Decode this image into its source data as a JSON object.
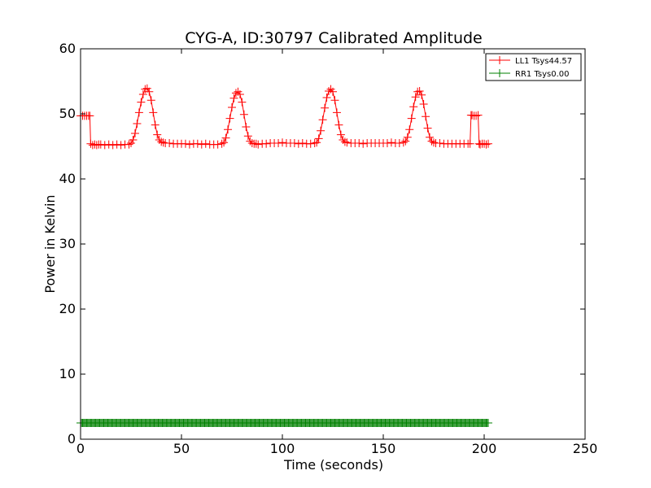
{
  "chart_data": {
    "type": "line",
    "title": "CYG-A, ID:30797 Calibrated Amplitude",
    "xlabel": "Time (seconds)",
    "ylabel": "Power in Kelvin",
    "xlim": [
      0,
      250
    ],
    "ylim": [
      0,
      60
    ],
    "xticks": [
      0,
      50,
      100,
      150,
      200,
      250
    ],
    "yticks": [
      0,
      10,
      20,
      30,
      40,
      50,
      60
    ],
    "xtick_labels": [
      "0",
      "50",
      "100",
      "150",
      "200",
      "250"
    ],
    "ytick_labels": [
      "0",
      "10",
      "20",
      "30",
      "40",
      "50",
      "60"
    ],
    "grid": false,
    "legend_position": "top-right",
    "marker": "+",
    "series": [
      {
        "name": "LL1 Tsys44.57",
        "color": "#ff0000",
        "x": [
          0,
          1,
          2,
          3,
          4,
          4.6,
          5,
          6,
          7,
          8,
          9,
          10,
          12,
          14,
          16,
          18,
          20,
          22,
          24,
          25,
          26,
          27,
          28,
          29,
          30,
          31,
          32,
          33,
          34,
          35,
          36,
          37,
          38,
          39,
          40,
          41,
          42,
          44,
          46,
          48,
          50,
          52,
          54,
          56,
          58,
          60,
          62,
          64,
          66,
          68,
          70,
          71,
          72,
          73,
          74,
          75,
          76,
          77,
          78,
          79,
          80,
          81,
          82,
          83,
          84,
          85,
          86,
          87,
          88,
          90,
          92,
          94,
          96,
          98,
          100,
          102,
          104,
          106,
          108,
          110,
          112,
          114,
          116,
          117,
          118,
          119,
          120,
          121,
          122,
          123,
          124,
          125,
          126,
          127,
          128,
          129,
          130,
          131,
          132,
          134,
          136,
          138,
          140,
          142,
          144,
          146,
          148,
          150,
          152,
          154,
          156,
          158,
          160,
          161,
          162,
          163,
          164,
          165,
          166,
          167,
          168,
          169,
          170,
          171,
          172,
          173,
          174,
          175,
          176,
          178,
          180,
          182,
          184,
          186,
          188,
          190,
          192,
          193,
          193.5,
          194,
          195,
          196,
          197,
          197.5,
          198,
          199,
          200,
          201,
          202
        ],
        "y": [
          49.7,
          49.7,
          49.7,
          49.7,
          49.7,
          49.7,
          45.4,
          45.2,
          45.3,
          45.2,
          45.3,
          45.3,
          45.2,
          45.3,
          45.2,
          45.3,
          45.2,
          45.3,
          45.3,
          45.5,
          46.0,
          47.0,
          48.5,
          50.2,
          51.8,
          53.0,
          53.8,
          53.9,
          53.4,
          52.1,
          50.2,
          48.3,
          46.8,
          46.0,
          45.7,
          45.6,
          45.5,
          45.5,
          45.4,
          45.4,
          45.4,
          45.4,
          45.3,
          45.4,
          45.4,
          45.3,
          45.4,
          45.3,
          45.3,
          45.3,
          45.4,
          45.6,
          46.3,
          47.6,
          49.3,
          51.0,
          52.4,
          53.2,
          53.4,
          53.0,
          51.8,
          49.9,
          48.0,
          46.6,
          45.8,
          45.5,
          45.4,
          45.4,
          45.3,
          45.4,
          45.4,
          45.5,
          45.5,
          45.5,
          45.6,
          45.5,
          45.5,
          45.5,
          45.4,
          45.5,
          45.4,
          45.4,
          45.5,
          45.6,
          46.2,
          47.4,
          49.1,
          50.9,
          52.5,
          53.5,
          53.8,
          53.4,
          52.1,
          50.2,
          48.3,
          46.8,
          46.0,
          45.7,
          45.6,
          45.5,
          45.5,
          45.5,
          45.4,
          45.5,
          45.5,
          45.5,
          45.5,
          45.5,
          45.5,
          45.6,
          45.5,
          45.5,
          45.6,
          45.8,
          46.4,
          47.6,
          49.3,
          51.1,
          52.6,
          53.4,
          53.5,
          52.9,
          51.5,
          49.6,
          47.8,
          46.4,
          45.8,
          45.6,
          45.5,
          45.5,
          45.4,
          45.4,
          45.4,
          45.4,
          45.4,
          45.4,
          45.4,
          45.4,
          49.8,
          49.8,
          49.7,
          49.7,
          49.8,
          45.4,
          45.3,
          45.4,
          45.4,
          45.3,
          45.4
        ]
      },
      {
        "name": "RR1 Tsys0.00",
        "color": "#008000",
        "x_start": 0,
        "x_end": 202,
        "x_step": 0.5,
        "value": 2.5
      }
    ]
  }
}
